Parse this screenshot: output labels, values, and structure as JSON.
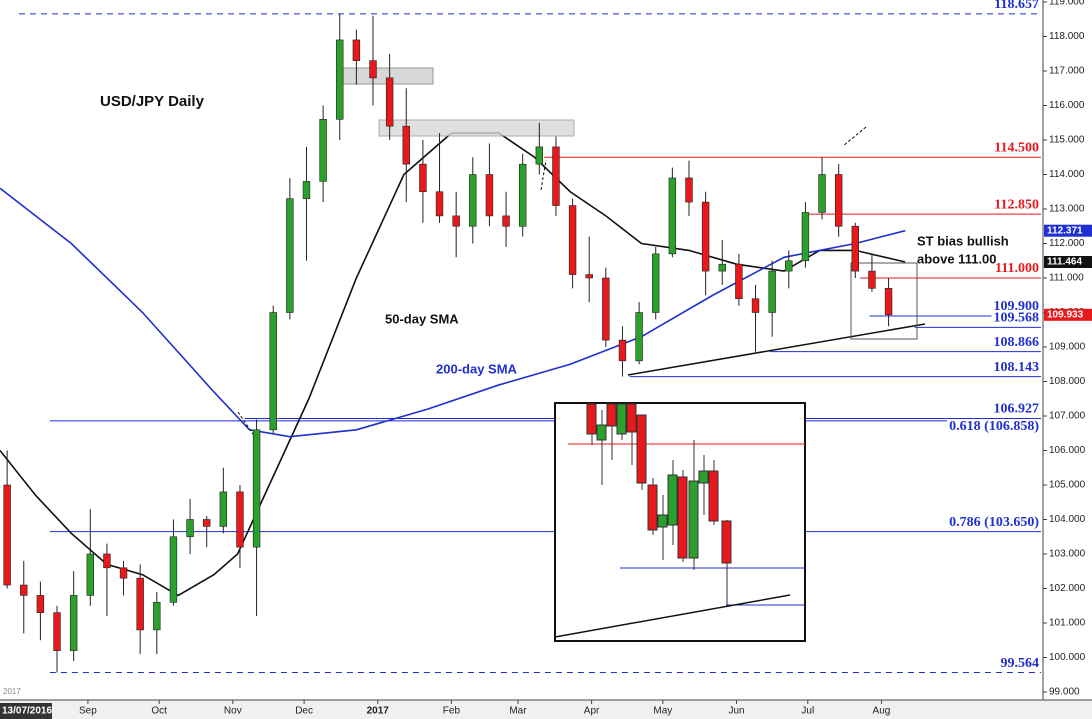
{
  "chart_data": {
    "type": "candlestick",
    "title": "USD/JPY Daily",
    "cursor_date": "13/07/2016",
    "corner_year": "2017",
    "xlim": [
      0,
      439
    ],
    "xticks": [
      {
        "value": 37,
        "label": "Sep"
      },
      {
        "value": 67,
        "label": "Oct"
      },
      {
        "value": 98,
        "label": "Nov"
      },
      {
        "value": 128,
        "label": "Dec"
      },
      {
        "value": 159,
        "label": "2017"
      },
      {
        "value": 190,
        "label": "Feb"
      },
      {
        "value": 218,
        "label": "Mar"
      },
      {
        "value": 249,
        "label": "Apr"
      },
      {
        "value": 279,
        "label": "May"
      },
      {
        "value": 310,
        "label": "Jun"
      },
      {
        "value": 340,
        "label": "Jul"
      },
      {
        "value": 371,
        "label": "Aug"
      }
    ],
    "ylim": [
      99,
      119
    ],
    "yticks": [
      {
        "value": 99,
        "label": "99.000"
      },
      {
        "value": 100,
        "label": "100.000"
      },
      {
        "value": 101,
        "label": "101.000"
      },
      {
        "value": 102,
        "label": "102.000"
      },
      {
        "value": 103,
        "label": "103.000"
      },
      {
        "value": 104,
        "label": "104.000"
      },
      {
        "value": 105,
        "label": "105.000"
      },
      {
        "value": 106,
        "label": "106.000"
      },
      {
        "value": 107,
        "label": "107.000"
      },
      {
        "value": 108,
        "label": "108.000"
      },
      {
        "value": 109,
        "label": "109.000"
      },
      {
        "value": 110,
        "label": "110.000"
      },
      {
        "value": 111,
        "label": "111.000"
      },
      {
        "value": 112,
        "label": "112.000"
      },
      {
        "value": 113,
        "label": "113.000"
      },
      {
        "value": 114,
        "label": "114.000"
      },
      {
        "value": 115,
        "label": "115.000"
      },
      {
        "value": 116,
        "label": "116.000"
      },
      {
        "value": 117,
        "label": "117.000"
      },
      {
        "value": 118,
        "label": "118.000"
      },
      {
        "value": 119,
        "label": "119.000"
      }
    ],
    "up_color": "#2ca02c",
    "down_color": "#e8191c",
    "ohlc": {
      "x": [
        3,
        10,
        17,
        24,
        31,
        38,
        45,
        52,
        59,
        66,
        73,
        80,
        87,
        94,
        101,
        108,
        115,
        122,
        129,
        136,
        143,
        150,
        157,
        164,
        171,
        178,
        185,
        192,
        199,
        206,
        213,
        220,
        227,
        234,
        241,
        248,
        255,
        262,
        269,
        276,
        283,
        290,
        297,
        304,
        311,
        318,
        325,
        332,
        339,
        346,
        353,
        360,
        367,
        374
      ],
      "open": [
        105.0,
        102.1,
        101.8,
        101.3,
        100.2,
        101.8,
        103.0,
        102.6,
        102.3,
        100.8,
        101.6,
        103.5,
        104.0,
        103.8,
        104.8,
        103.2,
        106.6,
        110.0,
        113.3,
        113.8,
        115.6,
        117.9,
        117.3,
        116.8,
        115.4,
        114.3,
        113.5,
        112.8,
        112.5,
        114.0,
        112.8,
        112.5,
        114.3,
        114.8,
        113.1,
        111.1,
        111.0,
        109.2,
        108.6,
        110.0,
        111.7,
        113.9,
        113.2,
        111.2,
        111.4,
        110.4,
        110.0,
        111.2,
        111.5,
        112.9,
        114.0,
        112.5,
        111.2,
        110.7
      ],
      "high": [
        106.0,
        102.8,
        102.2,
        101.5,
        102.5,
        104.3,
        103.3,
        102.8,
        102.7,
        101.9,
        104.0,
        104.6,
        104.1,
        105.5,
        105.0,
        106.9,
        110.2,
        113.9,
        114.8,
        116.0,
        118.657,
        118.2,
        118.6,
        117.5,
        116.5,
        115.0,
        115.2,
        113.5,
        114.5,
        114.9,
        113.5,
        114.6,
        115.5,
        115.1,
        113.3,
        112.2,
        111.3,
        109.6,
        110.3,
        111.9,
        114.2,
        114.4,
        113.5,
        112.1,
        111.7,
        110.8,
        111.5,
        111.8,
        113.2,
        114.5,
        114.3,
        112.6,
        111.7,
        111.0
      ],
      "low": [
        102.0,
        100.7,
        100.5,
        99.564,
        99.9,
        101.5,
        101.2,
        101.8,
        100.1,
        100.1,
        101.5,
        103.0,
        103.2,
        103.6,
        102.6,
        101.2,
        106.5,
        109.8,
        111.5,
        113.2,
        115.0,
        116.6,
        116.0,
        115.0,
        113.2,
        112.6,
        112.6,
        111.6,
        112.0,
        112.5,
        111.9,
        112.2,
        114.0,
        112.8,
        110.7,
        110.3,
        109.0,
        108.143,
        108.5,
        109.8,
        111.6,
        112.8,
        110.5,
        110.8,
        110.2,
        108.866,
        109.3,
        110.7,
        111.3,
        112.7,
        112.2,
        111.0,
        110.6,
        109.6
      ],
      "close": [
        102.1,
        101.8,
        101.3,
        100.2,
        101.8,
        103.0,
        102.6,
        102.3,
        100.8,
        101.6,
        103.5,
        104.0,
        103.8,
        104.8,
        103.2,
        106.6,
        110.0,
        113.3,
        113.8,
        115.6,
        117.9,
        117.3,
        116.8,
        115.4,
        114.3,
        113.5,
        112.8,
        112.5,
        114.0,
        112.8,
        112.5,
        114.3,
        114.8,
        113.1,
        111.1,
        111.0,
        109.2,
        108.6,
        110.0,
        111.7,
        113.9,
        113.2,
        111.2,
        111.4,
        110.4,
        110.0,
        111.2,
        111.5,
        112.9,
        114.0,
        112.5,
        111.2,
        110.7,
        109.933
      ]
    },
    "series": [
      {
        "name": "50-day SMA",
        "color": "#111111",
        "x": [
          0,
          15,
          30,
          45,
          60,
          75,
          90,
          100,
          110,
          130,
          150,
          170,
          190,
          210,
          225,
          240,
          255,
          270,
          290,
          310,
          330,
          345,
          360,
          381
        ],
        "values": [
          106.0,
          104.7,
          103.6,
          102.7,
          102.4,
          101.8,
          102.4,
          103.0,
          104.5,
          107.5,
          111.0,
          114.0,
          115.2,
          115.2,
          114.5,
          113.5,
          112.8,
          112.0,
          111.8,
          111.4,
          111.2,
          111.8,
          111.8,
          111.464
        ]
      },
      {
        "name": "200-day SMA",
        "color": "#1f2fd0",
        "x": [
          0,
          30,
          60,
          90,
          105,
          122,
          150,
          180,
          210,
          240,
          270,
          300,
          330,
          360,
          381
        ],
        "values": [
          113.6,
          112.0,
          110.0,
          107.7,
          106.6,
          106.4,
          106.6,
          107.2,
          107.9,
          108.5,
          109.3,
          110.5,
          111.6,
          112.0,
          112.371
        ]
      }
    ],
    "levels": [
      {
        "value": 118.657,
        "x0": 8,
        "color": "#1f2fd0",
        "dashed": true
      },
      {
        "value": 114.5,
        "label": "114.500",
        "x0": 229,
        "color": "#e8191c"
      },
      {
        "value": 112.85,
        "label": "112.850",
        "x0": 339,
        "color": "#e8191c"
      },
      {
        "value": 111.0,
        "label": "111.000",
        "x0": 362,
        "color": "#e8191c"
      },
      {
        "value": 109.9,
        "label": "109.900",
        "x0": 366,
        "color": "#1f2fd0"
      },
      {
        "value": 109.568,
        "x0": 385,
        "color": "#1f2fd0"
      },
      {
        "value": 108.866,
        "x0": 324,
        "color": "#1f2fd0"
      },
      {
        "value": 108.143,
        "x0": 265,
        "color": "#1f2fd0"
      },
      {
        "value": 106.927,
        "x0": 103,
        "color": "#1f2fd0"
      },
      {
        "value": 106.858,
        "label": "0.618 (106.858)",
        "x0": 21,
        "color": "#1f2fd0"
      },
      {
        "value": 103.65,
        "label": "0.786 (103.650)",
        "x0": 21,
        "color": "#1f2fd0"
      },
      {
        "value": 99.564,
        "x0": 21,
        "color": "#1f2fd0",
        "dashed": true
      }
    ],
    "price_tags": [
      {
        "value": 112.371,
        "color": "#1f2fd0"
      },
      {
        "value": 111.464,
        "color": "#111111"
      },
      {
        "value": 109.933,
        "color": "#e8191c"
      }
    ],
    "annotations": [
      "50-day SMA",
      "200-day SMA",
      "ST bias bullish",
      "above 111.00"
    ]
  }
}
